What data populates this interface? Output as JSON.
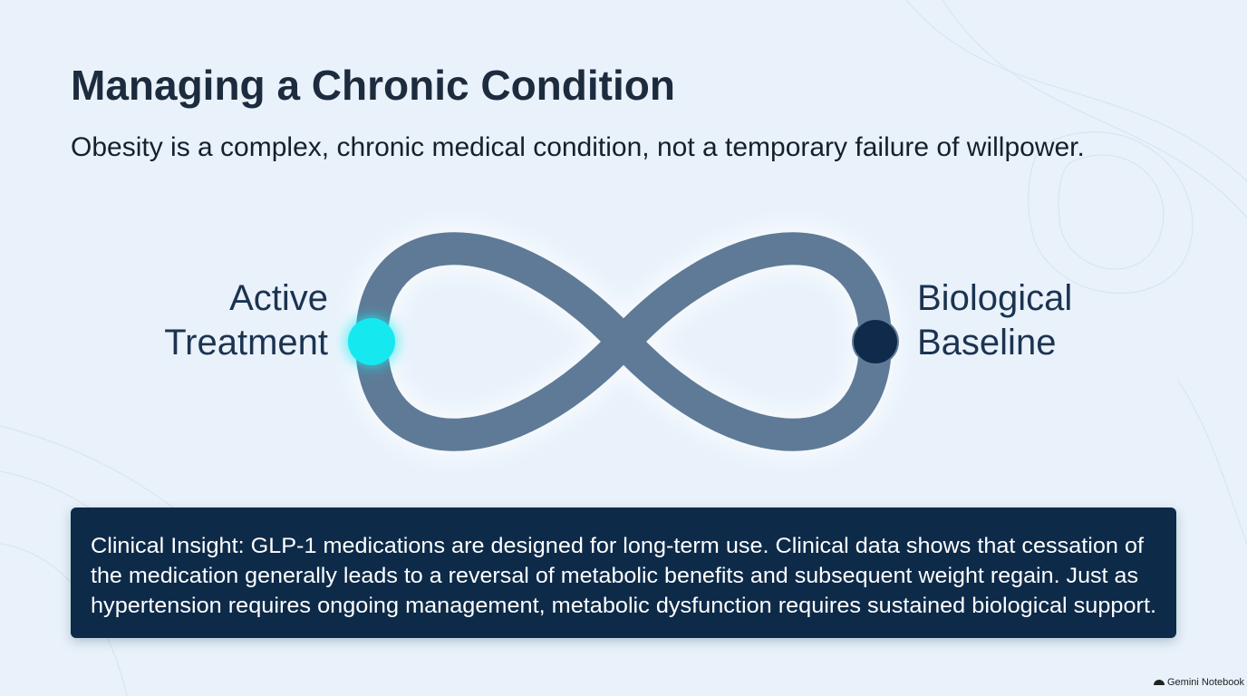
{
  "title": "Managing a Chronic Condition",
  "subtitle": "Obesity is a complex, chronic medical condition, not a temporary failure of willpower.",
  "diagram": {
    "left_label": [
      "Active",
      "Treatment"
    ],
    "right_label": [
      "Biological",
      "Baseline"
    ]
  },
  "insight": {
    "lines": [
      "Clinical Insight: GLP-1 medications are designed for long-term use. Clinical data shows that cessation of",
      "the medication generally leads to a reversal of metabolic benefits and subsequent weight regain. Just as",
      "hypertension requires ongoing management, metabolic dysfunction requires sustained biological support."
    ]
  },
  "watermark": "Gemini Notebook"
}
